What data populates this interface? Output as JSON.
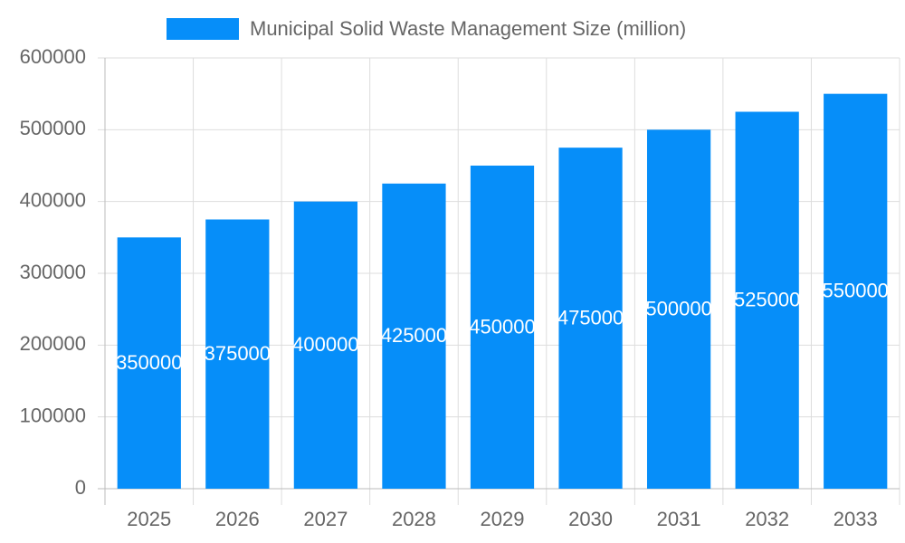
{
  "chart_data": {
    "type": "bar",
    "categories": [
      "2025",
      "2026",
      "2027",
      "2028",
      "2029",
      "2030",
      "2031",
      "2032",
      "2033"
    ],
    "series": [
      {
        "name": "Municipal Solid Waste Management Size (million)",
        "color": "#068ef9",
        "values": [
          350000,
          375000,
          400000,
          425000,
          450000,
          475000,
          500000,
          525000,
          550000
        ]
      }
    ],
    "ylim": [
      0,
      600000
    ],
    "yticks": [
      0,
      100000,
      200000,
      300000,
      400000,
      500000,
      600000
    ],
    "grid": true,
    "legend": "top",
    "data_labels": true
  }
}
